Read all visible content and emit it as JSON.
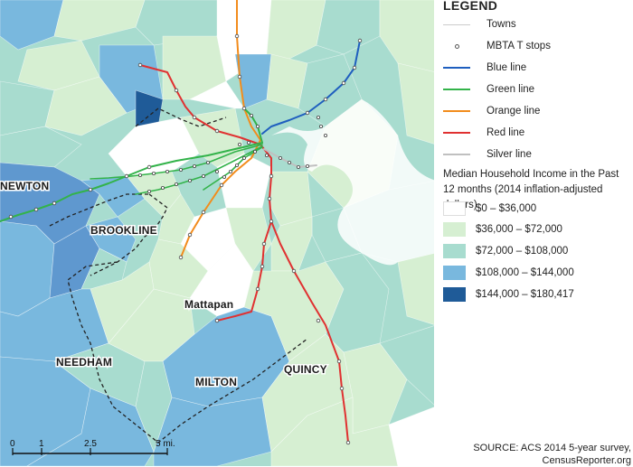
{
  "legend": {
    "title": "LEGEND",
    "items": [
      {
        "label": "Towns",
        "symbol": "town-boundary",
        "color": "#cccccc"
      },
      {
        "label": "MBTA T stops",
        "symbol": "stop-circle",
        "color": "#555555"
      },
      {
        "label": "Blue line",
        "symbol": "line",
        "color": "#1f5fbf"
      },
      {
        "label": "Green line",
        "symbol": "line",
        "color": "#33b34a"
      },
      {
        "label": "Orange line",
        "symbol": "line",
        "color": "#f28c1c"
      },
      {
        "label": "Red line",
        "symbol": "line",
        "color": "#e03131"
      },
      {
        "label": "Silver line",
        "symbol": "line",
        "color": "#c0c0c0"
      }
    ]
  },
  "income": {
    "title": "Median Household Income in the Past 12 months (2014 inflation-adjusted dollars)",
    "classes": [
      {
        "label": "$0 – $36,000",
        "color": "#ffffff"
      },
      {
        "label": "$36,000 – $72,000",
        "color": "#d6efd2"
      },
      {
        "label": "$72,000 – $108,000",
        "color": "#a8dccf"
      },
      {
        "label": "$108,000 – $144,000",
        "color": "#79b8de"
      },
      {
        "label": "$144,000 – $180,417",
        "color": "#1f5b98"
      }
    ]
  },
  "places": {
    "newton": "NEWTON",
    "brookline": "BROOKLINE",
    "mattapan": "Mattapan",
    "needham": "NEEDHAM",
    "milton": "MILTON",
    "quincy": "QUINCY"
  },
  "scale": {
    "ticks": [
      "0",
      "1",
      "2.5",
      "5 mi."
    ]
  },
  "source": {
    "line1": "SOURCE: ACS 2014 5-year survey,",
    "line2": "CensusReporter.org"
  }
}
